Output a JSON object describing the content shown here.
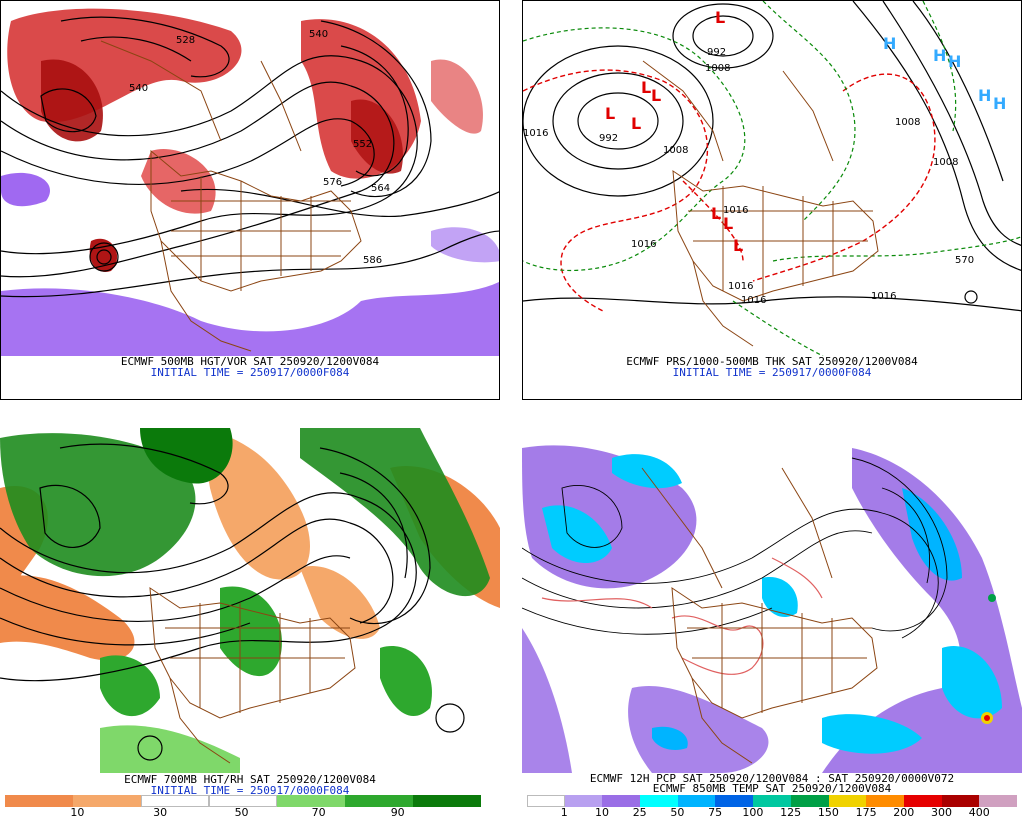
{
  "panels": {
    "tl": {
      "caption": "ECMWF 500MB HGT/VOR SAT 250920/1200V084",
      "initial": "INITIAL TIME = 250917/0000F084",
      "contour_labels": [
        "528",
        "540",
        "540",
        "576",
        "552",
        "564",
        "586"
      ]
    },
    "tr": {
      "caption": "ECMWF PRS/1000-500MB THK SAT 250920/1200V084",
      "initial": "INITIAL TIME = 250917/0000F084",
      "contour_labels": [
        "992",
        "1008",
        "1016",
        "992",
        "1016",
        "1016",
        "1016",
        "1008",
        "1008",
        "1008",
        "1016",
        "1016",
        "570"
      ]
    },
    "bl": {
      "caption": "ECMWF 700MB HGT/RH SAT 250920/1200V084",
      "initial": "INITIAL TIME = 250917/0000F084",
      "colorbar_ticks": [
        "10",
        "30",
        "50",
        "70",
        "90"
      ],
      "colorbar_colors": [
        "#f08a4b",
        "#f5a86a",
        "#ffffff",
        "#ffffff",
        "#7fd86a",
        "#2ea82e",
        "#0b7a0b"
      ]
    },
    "br": {
      "caption1": "ECMWF 12H PCP SAT 250920/1200V084 : SAT 250920/0000V072",
      "caption2": "ECMWF 850MB TEMP SAT 250920/1200V084",
      "colorbar_ticks": [
        "1",
        "10",
        "25",
        "50",
        "75",
        "100",
        "125",
        "150",
        "175",
        "200",
        "300",
        "400"
      ],
      "colorbar_colors": [
        "#ffffff",
        "#b8a0f0",
        "#9a6ee6",
        "#00ffff",
        "#00b4ff",
        "#0064e6",
        "#00c8a0",
        "#00a046",
        "#f0d200",
        "#ff8c00",
        "#e60000",
        "#aa0000",
        "#d0a0c0"
      ]
    }
  },
  "colors": {
    "vorticity_positive": "#cc1111",
    "vorticity_negative": "#8844ee",
    "border_brown": "#8b4513",
    "rh_moist": "#1e8c1e",
    "rh_dry": "#f08a4b",
    "thickness_red": "#e00000",
    "thickness_green": "#0a8a0a",
    "high_blue": "#33aaff",
    "precip_purple": "#9a6ee6",
    "precip_cyan": "#00ccff"
  }
}
